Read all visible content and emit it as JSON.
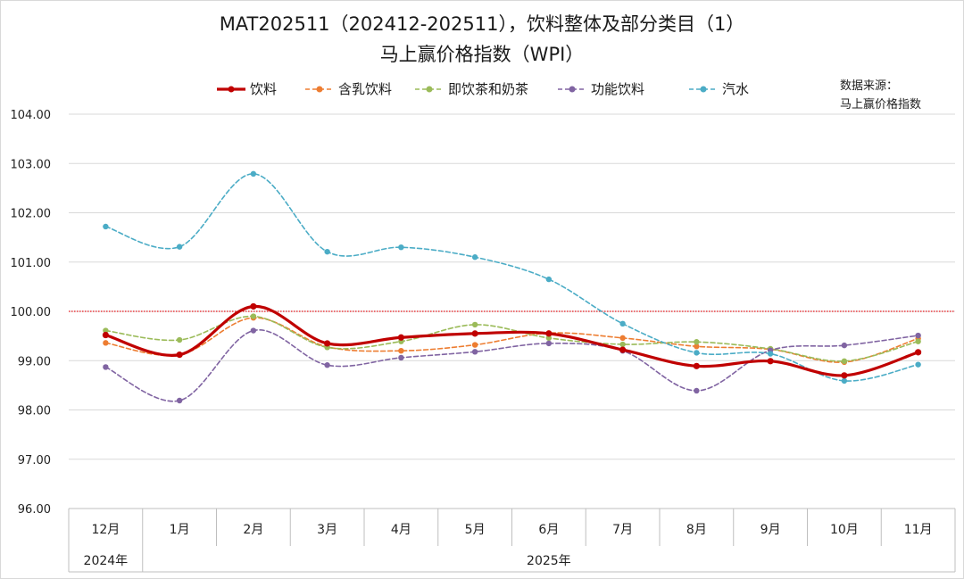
{
  "chart_data": {
    "type": "line",
    "title_lines": [
      "MAT202511（202412-202511），饮料整体及部分类目（1）",
      "马上赢价格指数（WPI）"
    ],
    "source_lines": [
      "数据来源：",
      "马上赢价格指数"
    ],
    "categories": [
      "12月",
      "1月",
      "2月",
      "3月",
      "4月",
      "5月",
      "6月",
      "7月",
      "8月",
      "9月",
      "10月",
      "11月"
    ],
    "year_groups": [
      {
        "label": "2024年",
        "start": 0,
        "end": 0
      },
      {
        "label": "2025年",
        "start": 1,
        "end": 11
      }
    ],
    "ylim": [
      96,
      104
    ],
    "yticks": [
      "96.00",
      "97.00",
      "98.00",
      "99.00",
      "100.00",
      "101.00",
      "102.00",
      "103.00",
      "104.00"
    ],
    "reference_line": {
      "value": 100,
      "color": "#e8161b"
    },
    "grid": true,
    "legend_position": "top",
    "series": [
      {
        "name": "饮料",
        "color": "#c00000",
        "dashed": false,
        "values": [
          99.52,
          99.12,
          100.1,
          99.35,
          99.47,
          99.55,
          99.55,
          99.22,
          98.89,
          98.99,
          98.7,
          99.17
        ]
      },
      {
        "name": "含乳饮料",
        "color": "#ed7d31",
        "dashed": true,
        "values": [
          99.36,
          99.12,
          99.87,
          99.28,
          99.2,
          99.32,
          99.56,
          99.46,
          99.29,
          99.23,
          98.97,
          99.45
        ]
      },
      {
        "name": "即饮茶和奶茶",
        "color": "#9bbb59",
        "dashed": true,
        "values": [
          99.61,
          99.42,
          99.9,
          99.27,
          99.39,
          99.73,
          99.46,
          99.33,
          99.38,
          99.24,
          98.99,
          99.39
        ]
      },
      {
        "name": "功能饮料",
        "color": "#8064a2",
        "dashed": true,
        "values": [
          98.87,
          98.19,
          99.61,
          98.91,
          99.06,
          99.18,
          99.35,
          99.2,
          98.39,
          99.21,
          99.31,
          99.51
        ]
      },
      {
        "name": "汽水",
        "color": "#4bacc6",
        "dashed": true,
        "values": [
          101.72,
          101.31,
          102.79,
          101.21,
          101.3,
          101.1,
          100.65,
          99.75,
          99.16,
          99.14,
          98.59,
          98.92
        ]
      }
    ]
  }
}
